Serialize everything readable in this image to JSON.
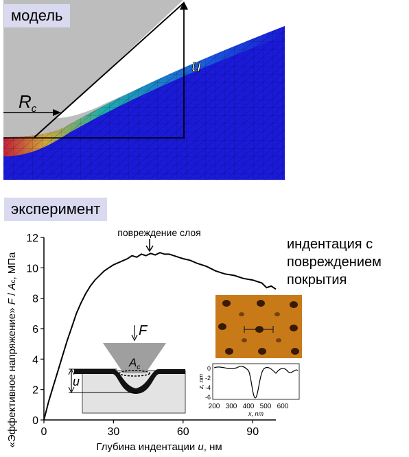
{
  "model": {
    "label": "модель",
    "u_label": "u",
    "rc_label": "R",
    "rc_sub": "c",
    "colors": {
      "mesh_blue": "#1a1ad8",
      "indenter": "#bdbdbd",
      "hot": "#e02020",
      "warm": "#20c8a0"
    }
  },
  "experiment": {
    "label": "эксперимент",
    "damage_label": "повреждение слоя",
    "side_note": [
      "индентация с",
      "повреждением",
      "покрытия"
    ],
    "inset": {
      "F_label": "F",
      "Ac_label": "A",
      "Ac_sub": "c",
      "u_label": "u"
    },
    "profile": {
      "ylabel": "z, nm",
      "xlabel": "x, nm",
      "yticks": [
        "0",
        "-2",
        "-4",
        "-6"
      ],
      "xticks": [
        "200",
        "300",
        "400",
        "500",
        "600"
      ]
    }
  },
  "chart_data": {
    "type": "line",
    "ylabel_parts": [
      "«Эффективное напряжение» ",
      "F",
      " / ",
      "A",
      "c",
      ", МПа"
    ],
    "xlabel_parts": [
      "Глубина индентации ",
      "u",
      ", нм"
    ],
    "xlim": [
      0,
      100
    ],
    "ylim": [
      0,
      12
    ],
    "xticks": [
      0,
      30,
      60,
      90
    ],
    "yticks": [
      0,
      2,
      4,
      6,
      8,
      10,
      12
    ],
    "grid": false,
    "series": [
      {
        "x": [
          0,
          1,
          2,
          4,
          6,
          8,
          10,
          12,
          14,
          16,
          18,
          20,
          22,
          24,
          26,
          28,
          30,
          33,
          36,
          38,
          40,
          42,
          44,
          46,
          48,
          50,
          52,
          54,
          56,
          58,
          60,
          63,
          66,
          70,
          74,
          78,
          82,
          86,
          90,
          94,
          96,
          98,
          100
        ],
        "y": [
          0,
          0.6,
          1.2,
          2.2,
          3.2,
          4.2,
          5.2,
          6.1,
          7.0,
          7.7,
          8.3,
          8.8,
          9.2,
          9.5,
          9.8,
          10.0,
          10.2,
          10.4,
          10.6,
          10.8,
          10.7,
          10.9,
          10.8,
          10.95,
          10.85,
          11.0,
          10.9,
          10.9,
          10.8,
          10.7,
          10.6,
          10.5,
          10.3,
          10.1,
          9.8,
          9.6,
          9.5,
          9.3,
          9.2,
          9.0,
          8.7,
          8.8,
          8.6
        ]
      }
    ]
  }
}
